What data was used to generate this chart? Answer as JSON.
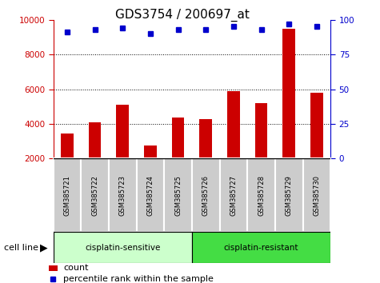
{
  "title": "GDS3754 / 200697_at",
  "samples": [
    "GSM385721",
    "GSM385722",
    "GSM385723",
    "GSM385724",
    "GSM385725",
    "GSM385726",
    "GSM385727",
    "GSM385728",
    "GSM385729",
    "GSM385730"
  ],
  "counts": [
    3450,
    4100,
    5100,
    2750,
    4350,
    4250,
    5900,
    5200,
    9500,
    5800
  ],
  "percentile_ranks": [
    91,
    93,
    94,
    90,
    93,
    93,
    95,
    93,
    97,
    95
  ],
  "bar_color": "#cc0000",
  "dot_color": "#0000cc",
  "left_ylim": [
    2000,
    10000
  ],
  "right_ylim": [
    0,
    100
  ],
  "left_yticks": [
    2000,
    4000,
    6000,
    8000,
    10000
  ],
  "right_yticks": [
    0,
    25,
    50,
    75,
    100
  ],
  "left_ycolor": "#cc0000",
  "right_ycolor": "#0000cc",
  "title_fontsize": 11,
  "group_colors_sensitive": "#ccffcc",
  "group_colors_resistant": "#44dd44",
  "cell_line_label": "cell line",
  "legend_count_label": "count",
  "legend_pct_label": "percentile rank within the sample",
  "background_color": "#ffffff",
  "tick_label_bg": "#cccccc",
  "bar_bottom": 2000
}
